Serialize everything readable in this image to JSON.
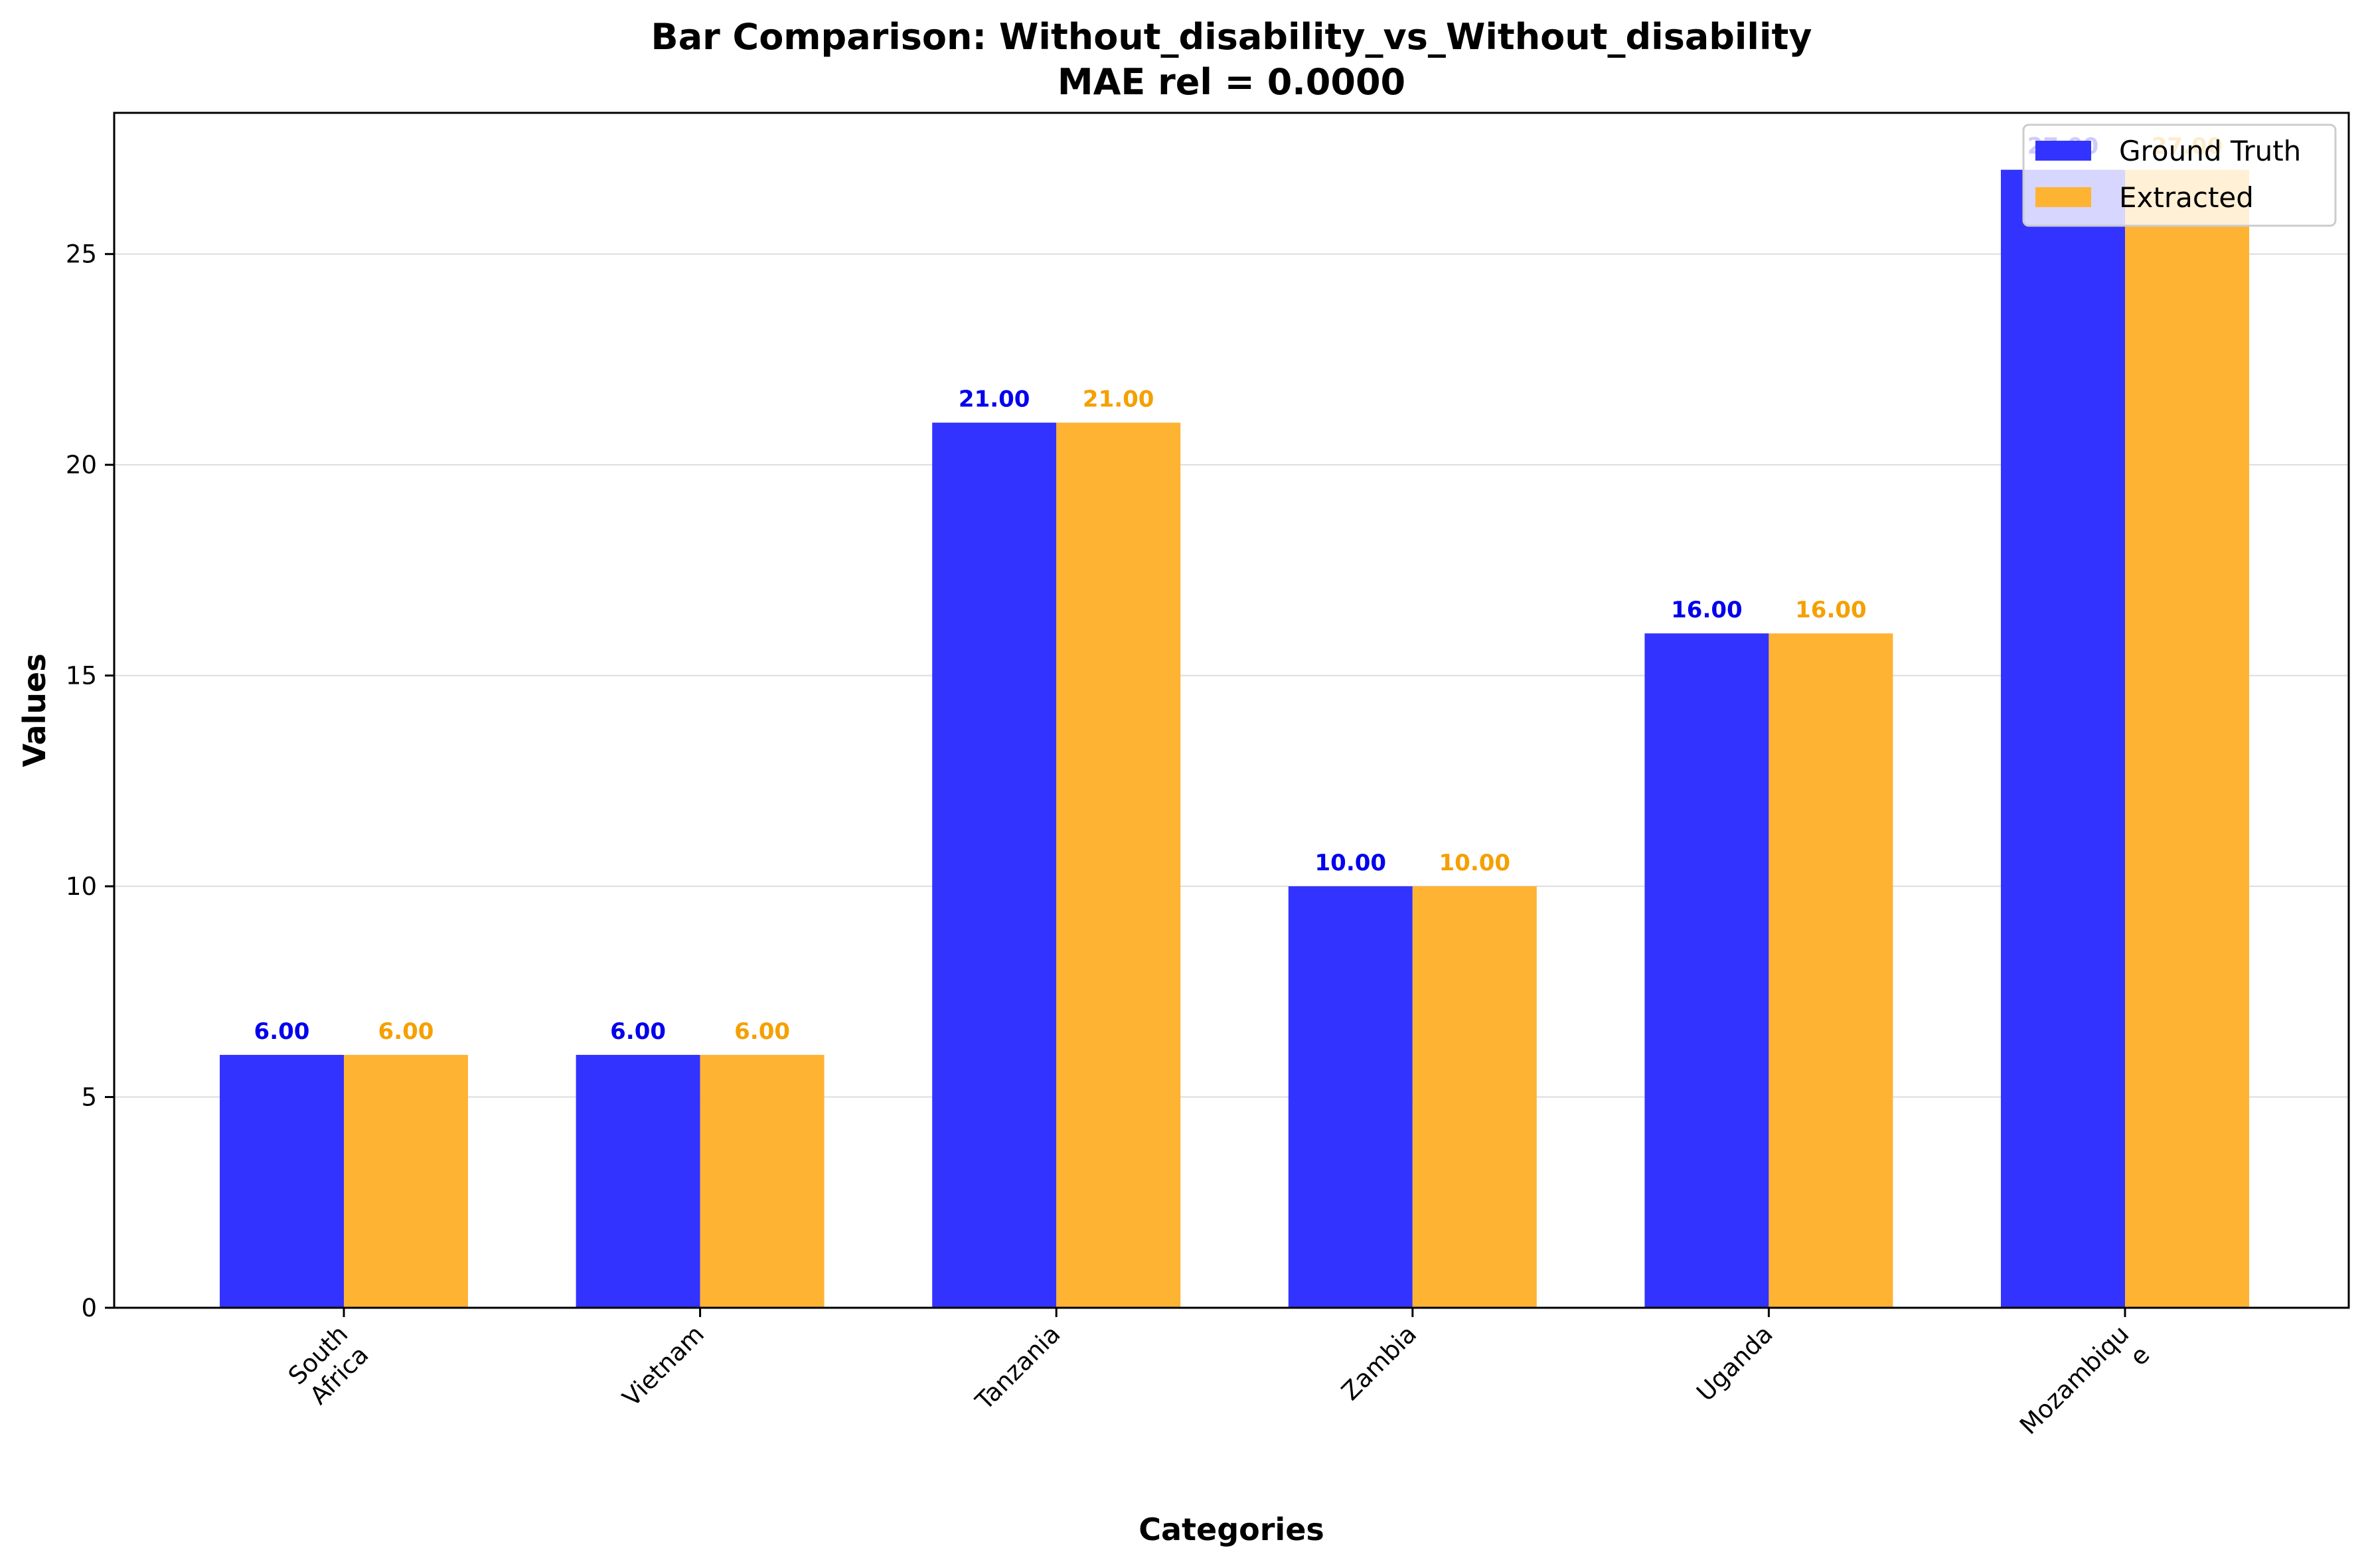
{
  "chart_data": {
    "type": "bar",
    "title": "Bar Comparison: Without_disability_vs_Without_disability",
    "subtitle": "MAE rel = 0.0000",
    "xlabel": "Categories",
    "ylabel": "Values",
    "categories": [
      [
        "South",
        "Africa"
      ],
      [
        "Vietnam"
      ],
      [
        "Tanzania"
      ],
      [
        "Zambia"
      ],
      [
        "Uganda"
      ],
      [
        "Mozambiqu",
        "e"
      ]
    ],
    "series": [
      {
        "name": "Ground Truth",
        "values": [
          6,
          6,
          21,
          10,
          16,
          27
        ],
        "labels": [
          "6.00",
          "6.00",
          "21.00",
          "10.00",
          "16.00",
          "27.00"
        ],
        "color": "#3333ff",
        "label_color": "#0000ee"
      },
      {
        "name": "Extracted",
        "values": [
          6,
          6,
          21,
          10,
          16,
          27
        ],
        "labels": [
          "6.00",
          "6.00",
          "21.00",
          "10.00",
          "16.00",
          "27.00"
        ],
        "color": "#ffb333",
        "label_color": "#f5a000"
      }
    ],
    "ylim": [
      0,
      28.35
    ],
    "yticks": [
      0,
      5,
      10,
      15,
      20,
      25
    ],
    "ytick_labels": [
      "0",
      "5",
      "10",
      "15",
      "20",
      "25"
    ],
    "grid": "horizontal",
    "legend_position": "top-right"
  }
}
